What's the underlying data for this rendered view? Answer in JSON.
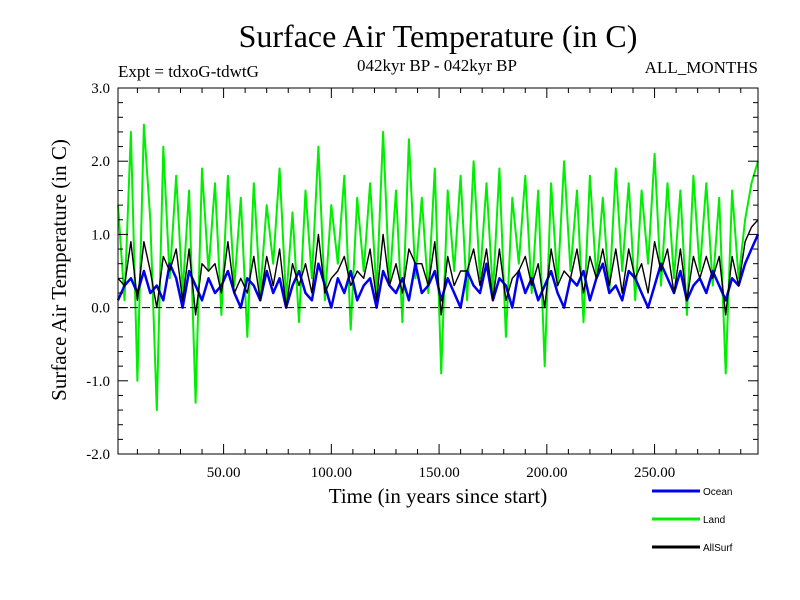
{
  "chart_data": {
    "type": "line",
    "title": "Surface Air Temperature (in C)",
    "subtitle_left": "Expt = tdxoG-tdwtG",
    "subtitle_center": "042kyr BP - 042kyr BP",
    "subtitle_right": "ALL_MONTHS",
    "xlabel": "Time (in years since start)",
    "ylabel": "Surface Air Temperature (in C)",
    "xlim": [
      1,
      298
    ],
    "ylim": [
      -2.0,
      3.0
    ],
    "x_ticks": [
      50,
      100,
      150,
      200,
      250
    ],
    "x_tick_labels": [
      "50.00",
      "100.00",
      "150.00",
      "200.00",
      "250.00"
    ],
    "y_ticks": [
      -2.0,
      -1.0,
      0.0,
      1.0,
      2.0,
      3.0
    ],
    "y_tick_labels": [
      "-2.0",
      "-1.0",
      "0.0",
      "1.0",
      "2.0",
      "3.0"
    ],
    "zero_line": true,
    "grid": false,
    "legend_position": "bottom-right",
    "series": [
      {
        "name": "Land",
        "color": "#00ee00",
        "x": [
          1,
          4,
          7,
          10,
          13,
          16,
          19,
          22,
          25,
          28,
          31,
          34,
          37,
          40,
          43,
          46,
          49,
          52,
          55,
          58,
          61,
          64,
          67,
          70,
          73,
          76,
          79,
          82,
          85,
          88,
          91,
          94,
          97,
          100,
          103,
          106,
          109,
          112,
          115,
          118,
          121,
          124,
          127,
          130,
          133,
          136,
          139,
          142,
          145,
          148,
          151,
          154,
          157,
          160,
          163,
          166,
          169,
          172,
          175,
          178,
          181,
          184,
          187,
          190,
          193,
          196,
          199,
          202,
          205,
          208,
          211,
          214,
          217,
          220,
          223,
          226,
          229,
          232,
          235,
          238,
          241,
          244,
          247,
          250,
          253,
          256,
          259,
          262,
          265,
          268,
          271,
          274,
          277,
          280,
          283,
          286,
          289,
          292,
          295,
          298
        ],
        "values": [
          1.4,
          0.1,
          2.4,
          -1.0,
          2.5,
          1.2,
          -1.4,
          2.2,
          0.4,
          1.8,
          0.2,
          1.6,
          -1.3,
          1.9,
          0.5,
          1.7,
          -0.1,
          1.8,
          0.3,
          1.5,
          -0.4,
          1.7,
          0.2,
          1.4,
          0.6,
          1.9,
          0.1,
          1.3,
          -0.2,
          1.6,
          0.4,
          2.2,
          0.1,
          1.4,
          0.6,
          1.8,
          -0.3,
          1.5,
          0.5,
          1.7,
          0.2,
          2.4,
          0.3,
          1.6,
          -0.2,
          2.3,
          0.4,
          1.5,
          0.2,
          1.9,
          -0.9,
          1.6,
          0.5,
          1.8,
          0.1,
          2.0,
          0.4,
          1.7,
          0.2,
          1.9,
          -0.4,
          1.5,
          0.6,
          1.8,
          0.2,
          1.6,
          -0.8,
          1.7,
          0.3,
          2.0,
          0.5,
          1.6,
          -0.2,
          1.8,
          0.4,
          1.5,
          0.2,
          1.9,
          0.5,
          1.7,
          0.1,
          1.6,
          0.6,
          2.1,
          0.3,
          1.7,
          0.4,
          1.6,
          -0.1,
          1.8,
          0.5,
          1.7,
          0.3,
          1.5,
          -0.9,
          1.6,
          0.4,
          1.2,
          1.7,
          2.0
        ]
      },
      {
        "name": "Ocean",
        "color": "#0000ee",
        "x": [
          1,
          4,
          7,
          10,
          13,
          16,
          19,
          22,
          25,
          28,
          31,
          34,
          37,
          40,
          43,
          46,
          49,
          52,
          55,
          58,
          61,
          64,
          67,
          70,
          73,
          76,
          79,
          82,
          85,
          88,
          91,
          94,
          97,
          100,
          103,
          106,
          109,
          112,
          115,
          118,
          121,
          124,
          127,
          130,
          133,
          136,
          139,
          142,
          145,
          148,
          151,
          154,
          157,
          160,
          163,
          166,
          169,
          172,
          175,
          178,
          181,
          184,
          187,
          190,
          193,
          196,
          199,
          202,
          205,
          208,
          211,
          214,
          217,
          220,
          223,
          226,
          229,
          232,
          235,
          238,
          241,
          244,
          247,
          250,
          253,
          256,
          259,
          262,
          265,
          268,
          271,
          274,
          277,
          280,
          283,
          286,
          289,
          292,
          295,
          298
        ],
        "values": [
          0.1,
          0.3,
          0.4,
          0.2,
          0.5,
          0.2,
          0.3,
          0.1,
          0.6,
          0.4,
          0.0,
          0.5,
          0.3,
          0.1,
          0.4,
          0.2,
          0.3,
          0.5,
          0.2,
          0.0,
          0.4,
          0.3,
          0.1,
          0.5,
          0.2,
          0.4,
          0.0,
          0.3,
          0.5,
          0.2,
          0.1,
          0.6,
          0.3,
          0.0,
          0.4,
          0.2,
          0.5,
          0.1,
          0.3,
          0.4,
          0.0,
          0.5,
          0.3,
          0.2,
          0.4,
          0.1,
          0.6,
          0.2,
          0.3,
          0.5,
          0.1,
          0.4,
          0.2,
          0.0,
          0.5,
          0.3,
          0.2,
          0.6,
          0.1,
          0.4,
          0.3,
          0.0,
          0.5,
          0.2,
          0.4,
          0.1,
          0.3,
          0.5,
          0.2,
          0.0,
          0.4,
          0.3,
          0.5,
          0.1,
          0.4,
          0.6,
          0.2,
          0.3,
          0.1,
          0.5,
          0.4,
          0.2,
          0.0,
          0.3,
          0.6,
          0.4,
          0.2,
          0.5,
          0.1,
          0.3,
          0.4,
          0.2,
          0.5,
          0.3,
          0.1,
          0.4,
          0.3,
          0.6,
          0.8,
          1.0
        ]
      },
      {
        "name": "AllSurf",
        "color": "#000000",
        "x": [
          1,
          4,
          7,
          10,
          13,
          16,
          19,
          22,
          25,
          28,
          31,
          34,
          37,
          40,
          43,
          46,
          49,
          52,
          55,
          58,
          61,
          64,
          67,
          70,
          73,
          76,
          79,
          82,
          85,
          88,
          91,
          94,
          97,
          100,
          103,
          106,
          109,
          112,
          115,
          118,
          121,
          124,
          127,
          130,
          133,
          136,
          139,
          142,
          145,
          148,
          151,
          154,
          157,
          160,
          163,
          166,
          169,
          172,
          175,
          178,
          181,
          184,
          187,
          190,
          193,
          196,
          199,
          202,
          205,
          208,
          211,
          214,
          217,
          220,
          223,
          226,
          229,
          232,
          235,
          238,
          241,
          244,
          247,
          250,
          253,
          256,
          259,
          262,
          265,
          268,
          271,
          274,
          277,
          280,
          283,
          286,
          289,
          292,
          295,
          298
        ],
        "values": [
          0.4,
          0.3,
          0.9,
          0.1,
          0.9,
          0.5,
          0.0,
          0.7,
          0.5,
          0.8,
          0.1,
          0.8,
          -0.1,
          0.6,
          0.5,
          0.6,
          0.2,
          0.9,
          0.2,
          0.4,
          0.2,
          0.7,
          0.1,
          0.7,
          0.3,
          0.8,
          0.0,
          0.6,
          0.3,
          0.6,
          0.2,
          1.0,
          0.2,
          0.4,
          0.5,
          0.7,
          0.3,
          0.5,
          0.4,
          0.8,
          0.1,
          1.0,
          0.3,
          0.6,
          0.2,
          0.8,
          0.6,
          0.6,
          0.3,
          0.9,
          -0.1,
          0.7,
          0.3,
          0.5,
          0.5,
          0.8,
          0.3,
          0.8,
          0.1,
          0.8,
          0.1,
          0.4,
          0.5,
          0.7,
          0.3,
          0.6,
          0.0,
          0.8,
          0.3,
          0.5,
          0.4,
          0.8,
          0.2,
          0.7,
          0.4,
          0.8,
          0.3,
          0.8,
          0.2,
          0.8,
          0.4,
          0.6,
          0.2,
          0.9,
          0.5,
          0.8,
          0.2,
          0.8,
          0.1,
          0.7,
          0.4,
          0.7,
          0.4,
          0.7,
          -0.1,
          0.7,
          0.3,
          0.9,
          1.1,
          1.2
        ]
      }
    ]
  },
  "legend": {
    "items": [
      {
        "label": "Ocean",
        "color": "#0000ee"
      },
      {
        "label": "Land",
        "color": "#00ee00"
      },
      {
        "label": "AllSurf",
        "color": "#000000"
      }
    ]
  }
}
